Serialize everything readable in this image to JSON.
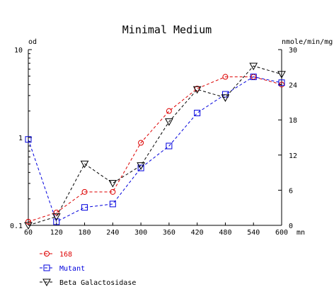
{
  "chart_data": {
    "type": "line",
    "title": "Minimal Medium",
    "left_axis": {
      "label": "od",
      "scale": "log",
      "range": [
        0.1,
        10
      ],
      "tick_labels": [
        "0.1",
        "1",
        "10"
      ]
    },
    "right_axis": {
      "label": "nmole/min/mg",
      "scale": "linear",
      "range": [
        0,
        30
      ],
      "tick_labels": [
        "0",
        "6",
        "12",
        "18",
        "24",
        "30"
      ]
    },
    "x_axis": {
      "unit_label": "mn",
      "range": [
        60,
        600
      ],
      "tick_labels": [
        "60",
        "120",
        "180",
        "240",
        "300",
        "360",
        "420",
        "480",
        "540",
        "600"
      ]
    },
    "x": [
      60,
      120,
      180,
      240,
      300,
      360,
      420,
      480,
      540,
      600
    ],
    "grid": false,
    "legend_position": "bottom-left",
    "series": [
      {
        "name": "168",
        "axis": "left",
        "color": "#dd0000",
        "marker": "circle",
        "line_style": "dashed",
        "values": [
          0.11,
          0.14,
          0.24,
          0.24,
          0.87,
          2.0,
          3.6,
          4.9,
          4.9,
          4.0
        ]
      },
      {
        "name": "Mutant",
        "axis": "left",
        "color": "#0000dd",
        "marker": "square",
        "line_style": "dashed",
        "values": [
          0.95,
          0.11,
          0.16,
          0.175,
          0.45,
          0.8,
          1.9,
          3.1,
          4.9,
          4.2
        ]
      },
      {
        "name": "Beta Galactosidase",
        "axis": "right",
        "color": "#000000",
        "marker": "triangle-down",
        "line_style": "dashed",
        "values": [
          0,
          1.5,
          10.5,
          7.2,
          10.2,
          17.7,
          23.2,
          21.8,
          27.2,
          25.8
        ]
      }
    ]
  }
}
